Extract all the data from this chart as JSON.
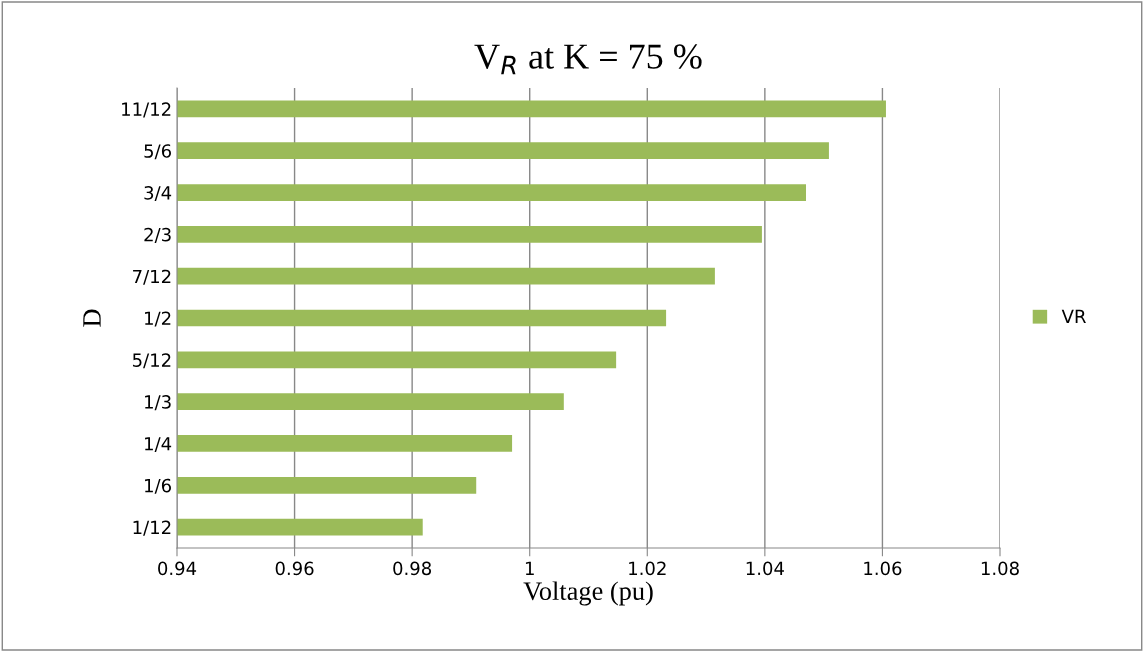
{
  "chart_data": {
    "type": "bar",
    "orientation": "horizontal",
    "title": "V$_{R}$ at K = 75 %",
    "xlabel": "Voltage (pu)",
    "ylabel": "D",
    "categories": [
      "11/12",
      "5/6",
      "3/4",
      "2/3",
      "7/12",
      "1/2",
      "5/12",
      "1/3",
      "1/4",
      "1/6",
      "1/12"
    ],
    "series": [
      {
        "name": "VR",
        "color": "#9bbb59",
        "values": [
          1.0606,
          1.0509,
          1.047,
          1.0395,
          1.0315,
          1.0232,
          1.0147,
          1.0058,
          0.997,
          0.9909,
          0.9818
        ]
      }
    ],
    "xlim": [
      0.94,
      1.08
    ],
    "xticks": [
      0.94,
      0.96,
      0.98,
      1,
      1.02,
      1.04,
      1.06,
      1.08
    ],
    "grid": "x",
    "legend": "right"
  }
}
